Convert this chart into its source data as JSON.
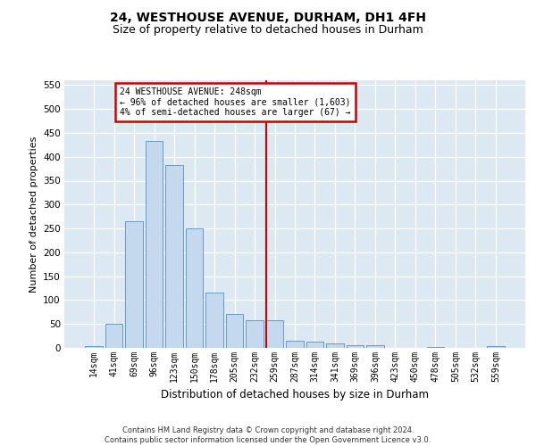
{
  "title_line1": "24, WESTHOUSE AVENUE, DURHAM, DH1 4FH",
  "title_line2": "Size of property relative to detached houses in Durham",
  "xlabel": "Distribution of detached houses by size in Durham",
  "ylabel": "Number of detached properties",
  "categories": [
    "14sqm",
    "41sqm",
    "69sqm",
    "96sqm",
    "123sqm",
    "150sqm",
    "178sqm",
    "205sqm",
    "232sqm",
    "259sqm",
    "287sqm",
    "314sqm",
    "341sqm",
    "369sqm",
    "396sqm",
    "423sqm",
    "450sqm",
    "478sqm",
    "505sqm",
    "532sqm",
    "559sqm"
  ],
  "values": [
    3,
    51,
    265,
    433,
    383,
    250,
    115,
    71,
    57,
    58,
    15,
    13,
    10,
    6,
    5,
    0,
    0,
    2,
    0,
    0,
    3
  ],
  "bar_color": "#c5d9ee",
  "bar_edge_color": "#6699cc",
  "vline_color": "#cc0000",
  "vline_pos": 8.59,
  "annotation_text": "24 WESTHOUSE AVENUE: 248sqm\n← 96% of detached houses are smaller (1,603)\n4% of semi-detached houses are larger (67) →",
  "annotation_box_facecolor": "#ffffff",
  "annotation_box_edgecolor": "#cc0000",
  "ylim": [
    0,
    560
  ],
  "yticks": [
    0,
    50,
    100,
    150,
    200,
    250,
    300,
    350,
    400,
    450,
    500,
    550
  ],
  "plot_bg_color": "#dce8f2",
  "footer_text": "Contains HM Land Registry data © Crown copyright and database right 2024.\nContains public sector information licensed under the Open Government Licence v3.0.",
  "title_fontsize": 10,
  "subtitle_fontsize": 9,
  "xlabel_fontsize": 8.5,
  "ylabel_fontsize": 8,
  "tick_fontsize": 7,
  "annot_fontsize": 7,
  "footer_fontsize": 6
}
